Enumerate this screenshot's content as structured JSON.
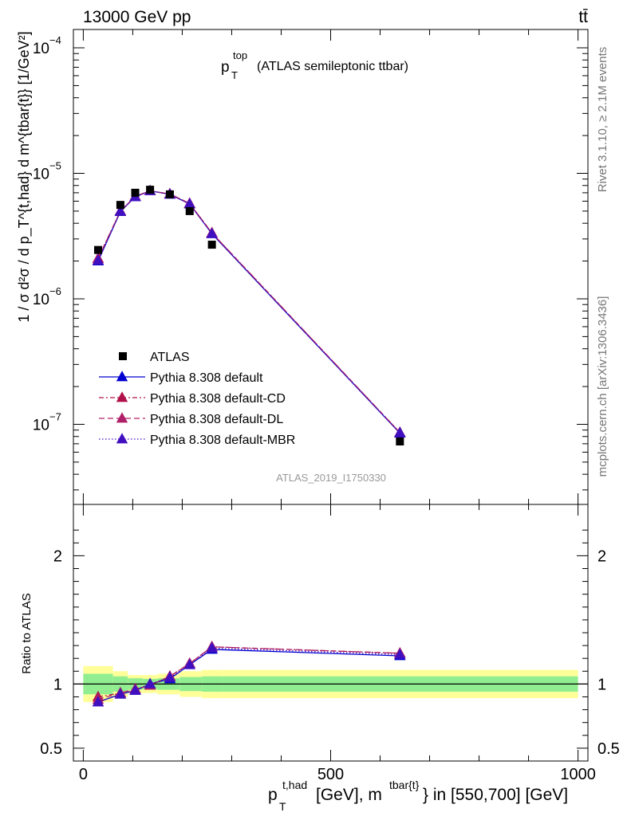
{
  "header": {
    "process": "13000 GeV pp",
    "tag": "tt̄",
    "rivet": "Rivet 3.1.10, ≥ 2.1M events",
    "mcplots": "mcplots.cern.ch [arXiv:1306.3436]",
    "analysis": "ATLAS_2019_I1750330"
  },
  "chart_data": [
    {
      "type": "scatter",
      "panel": "main",
      "title": "p_T^top (ATLAS semileptonic ttbar)",
      "title_main": "p",
      "title_sub": "T",
      "title_sup": "top",
      "title_rest": "(ATLAS semileptonic ttbar)",
      "ylabel": "1 / σ d²σ / d p_T^{t,had} d m^{tbar{t}} [1/GeV²]",
      "yscale": "log",
      "ylim": [
        2.3e-08,
        0.00014
      ],
      "xlim": [
        -20,
        1020
      ],
      "ytick_labels": [
        {
          "v": 1e-07,
          "base": "10",
          "exp": "−7"
        },
        {
          "v": 1e-06,
          "base": "10",
          "exp": "−6"
        },
        {
          "v": 1e-05,
          "base": "10",
          "exp": "−5"
        },
        {
          "v": 0.0001,
          "base": "10",
          "exp": "−4"
        }
      ],
      "legend_position": "lower-left",
      "series": [
        {
          "name": "ATLAS",
          "marker": "square",
          "color": "#000000",
          "dash": "",
          "x": [
            30,
            75,
            105,
            135,
            175,
            215,
            260,
            640
          ],
          "y": [
            2.45e-06,
            5.6e-06,
            7e-06,
            7.4e-06,
            6.8e-06,
            5e-06,
            2.7e-06,
            7.3e-08
          ]
        },
        {
          "name": "Pythia 8.308 default",
          "marker": "triangle",
          "color": "#0000d0",
          "dash": "",
          "x": [
            30,
            75,
            105,
            135,
            175,
            215,
            260,
            640
          ],
          "y": [
            2e-06,
            4.95e-06,
            6.5e-06,
            7.25e-06,
            6.8e-06,
            5.7e-06,
            3.3e-06,
            8.5e-08
          ]
        },
        {
          "name": "Pythia 8.308 default-CD",
          "marker": "triangle",
          "color": "#b0104a",
          "dash": "6,3,2,3",
          "x": [
            30,
            75,
            105,
            135,
            175,
            215,
            260,
            640
          ],
          "y": [
            2.1e-06,
            5e-06,
            6.55e-06,
            7.25e-06,
            6.85e-06,
            5.75e-06,
            3.35e-06,
            8.6e-08
          ]
        },
        {
          "name": "Pythia 8.308 default-DL",
          "marker": "triangle",
          "color": "#b0206a",
          "dash": "7,4",
          "x": [
            30,
            75,
            105,
            135,
            175,
            215,
            260,
            640
          ],
          "y": [
            2.08e-06,
            5e-06,
            6.55e-06,
            7.25e-06,
            6.85e-06,
            5.75e-06,
            3.35e-06,
            8.6e-08
          ]
        },
        {
          "name": "Pythia 8.308 default-MBR",
          "marker": "triangle",
          "color": "#4010c0",
          "dash": "1.5,2.5",
          "x": [
            30,
            75,
            105,
            135,
            175,
            215,
            260,
            640
          ],
          "y": [
            2.02e-06,
            4.97e-06,
            6.5e-06,
            7.25e-06,
            6.8e-06,
            5.7e-06,
            3.3e-06,
            8.55e-08
          ]
        }
      ]
    },
    {
      "type": "line",
      "panel": "ratio",
      "ylabel": "Ratio to ATLAS",
      "xlabel": "p_T^{t,had} [GeV], m^{tbar{t}} in [550,700] [GeV]",
      "xlabel_main": "p",
      "xlabel_sub": "T",
      "xlabel_sup": "t,had",
      "xlabel_mid": "[GeV], m",
      "xlabel_sup2": "tbar{t}",
      "xlabel_rest": "} in [550,700] [GeV]",
      "xlim": [
        -20,
        1020
      ],
      "ylim": [
        0.4,
        2.4
      ],
      "xticks": [
        0,
        500,
        1000
      ],
      "xtick_labels": [
        "0",
        "500",
        "1000"
      ],
      "yticks": [
        0.5,
        1,
        2
      ],
      "ytick_labels": [
        "0.5",
        "1",
        "2"
      ],
      "reference": 1,
      "bands": {
        "edges": [
          0,
          60,
          90,
          120,
          150,
          195,
          240,
          280,
          1000
        ],
        "yellow_half": [
          0.14,
          0.1,
          0.07,
          0.07,
          0.08,
          0.1,
          0.11,
          0.11
        ],
        "green_half": [
          0.08,
          0.06,
          0.045,
          0.04,
          0.045,
          0.055,
          0.06,
          0.06
        ]
      },
      "series": [
        {
          "name": "Pythia 8.308 default",
          "color": "#0000d0",
          "dash": "",
          "x": [
            30,
            75,
            105,
            135,
            175,
            215,
            260,
            640
          ],
          "y": [
            0.86,
            0.92,
            0.95,
            1.0,
            1.04,
            1.15,
            1.27,
            1.22
          ]
        },
        {
          "name": "Pythia 8.308 default-CD",
          "color": "#b0104a",
          "dash": "6,3,2,3",
          "x": [
            30,
            75,
            105,
            135,
            175,
            215,
            260,
            640
          ],
          "y": [
            0.9,
            0.93,
            0.96,
            0.99,
            1.06,
            1.16,
            1.29,
            1.24
          ]
        },
        {
          "name": "Pythia 8.308 default-DL",
          "color": "#b0206a",
          "dash": "7,4",
          "x": [
            30,
            75,
            105,
            135,
            175,
            215,
            260,
            640
          ],
          "y": [
            0.88,
            0.93,
            0.96,
            0.99,
            1.06,
            1.16,
            1.29,
            1.24
          ]
        },
        {
          "name": "Pythia 8.308 default-MBR",
          "color": "#4010c0",
          "dash": "1.5,2.5",
          "x": [
            30,
            75,
            105,
            135,
            175,
            215,
            260,
            640
          ],
          "y": [
            0.86,
            0.92,
            0.95,
            1.0,
            1.05,
            1.15,
            1.28,
            1.23
          ]
        }
      ]
    }
  ]
}
